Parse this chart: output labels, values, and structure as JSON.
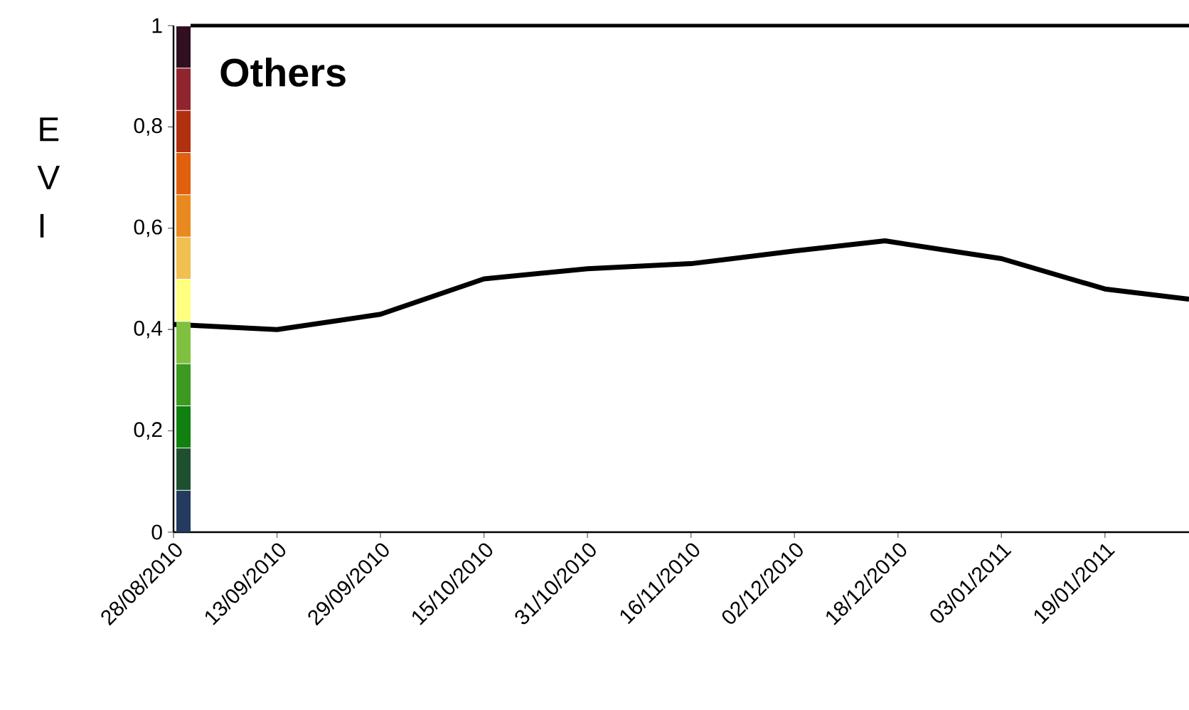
{
  "chart_data": {
    "type": "line",
    "title": "Others",
    "ylabel": "E V I",
    "x": [
      "2010-08-28",
      "2010-09-13",
      "2010-09-29",
      "2010-10-15",
      "2010-10-31",
      "2010-11-16",
      "2010-12-02",
      "2010-12-16",
      "2011-01-03",
      "2011-01-19",
      "2011-02-01"
    ],
    "series": [
      {
        "color": "#000000",
        "values": [
          0.41,
          0.4,
          0.43,
          0.5,
          0.52,
          0.53,
          0.555,
          0.575,
          0.54,
          0.48,
          0.46
        ]
      }
    ],
    "xlim": [
      "2010-08-28",
      "2011-02-01"
    ],
    "xticks": [
      {
        "value": "2010-08-28",
        "label": "28/08/2010"
      },
      {
        "value": "2010-09-13",
        "label": "13/09/2010"
      },
      {
        "value": "2010-09-29",
        "label": "29/09/2010"
      },
      {
        "value": "2010-10-15",
        "label": "15/10/2010"
      },
      {
        "value": "2010-10-31",
        "label": "31/10/2010"
      },
      {
        "value": "2010-11-16",
        "label": "16/11/2010"
      },
      {
        "value": "2010-12-02",
        "label": "02/12/2010"
      },
      {
        "value": "2010-12-18",
        "label": "18/12/2010"
      },
      {
        "value": "2011-01-03",
        "label": "03/01/2011"
      },
      {
        "value": "2011-01-19",
        "label": "19/01/2011"
      }
    ],
    "ylim": [
      0,
      1
    ],
    "yticks": [
      0,
      {
        "value": 0.2,
        "label": "0,2"
      },
      {
        "value": 0.4,
        "label": "0,4"
      },
      {
        "value": 0.6,
        "label": "0,6"
      },
      {
        "value": 0.8,
        "label": "0,8"
      },
      1
    ],
    "line_style": "solid"
  }
}
